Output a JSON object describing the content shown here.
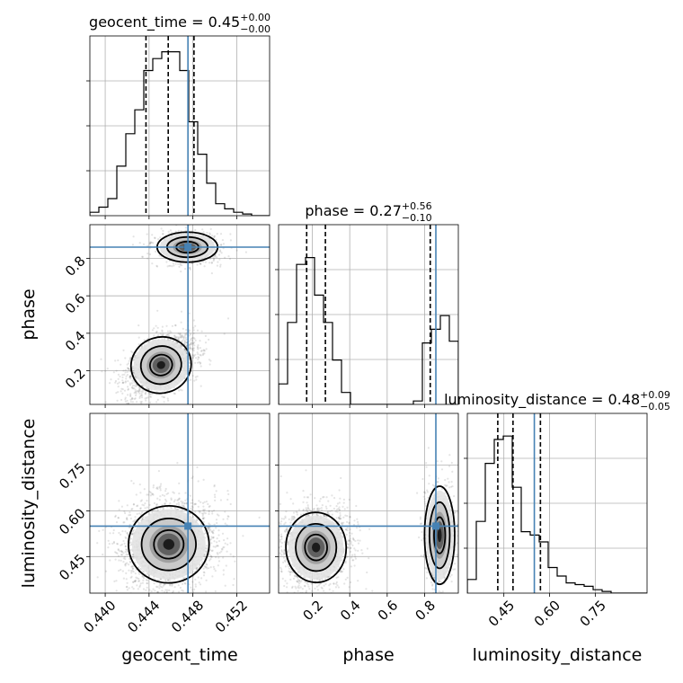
{
  "chart_data": {
    "type": "corner",
    "parameters": [
      {
        "name": "geocent_time",
        "axis_label": "geocent_time",
        "title_main": "geocent_time = 0.45",
        "title_plus": "+0.00",
        "title_minus": "−0.00",
        "range": [
          0.4386,
          0.455
        ],
        "ticks": [
          0.44,
          0.444,
          0.448,
          0.452
        ],
        "tick_labels": [
          "0.440",
          "0.444",
          "0.448",
          "0.452"
        ],
        "injection": 0.44755,
        "quantiles": [
          0.44372,
          0.44575,
          0.4481
        ],
        "hist_edges_start": 0.4386,
        "hist_bin_width": 0.00082,
        "hist_heights": [
          0.02,
          0.05,
          0.1,
          0.29,
          0.48,
          0.62,
          0.85,
          0.92,
          0.96,
          0.96,
          0.85,
          0.55,
          0.36,
          0.19,
          0.07,
          0.04,
          0.02,
          0.01,
          0.0,
          0.0
        ]
      },
      {
        "name": "phase",
        "axis_label": "phase",
        "title_main": "phase = 0.27",
        "title_plus": "+0.56",
        "title_minus": "−0.10",
        "range": [
          0.02,
          0.98
        ],
        "ticks": [
          0.2,
          0.4,
          0.6,
          0.8
        ],
        "tick_labels": [
          "0.2",
          "0.4",
          "0.6",
          "0.8"
        ],
        "injection": 0.86,
        "quantiles": [
          0.17,
          0.27,
          0.83
        ],
        "hist_edges_start": 0.02,
        "hist_bin_width": 0.048,
        "hist_heights": [
          0.12,
          0.48,
          0.82,
          0.86,
          0.64,
          0.48,
          0.26,
          0.07,
          0.0,
          0.0,
          0.0,
          0.0,
          0.0,
          0.0,
          0.0,
          0.02,
          0.36,
          0.44,
          0.52,
          0.37
        ]
      },
      {
        "name": "luminosity_distance",
        "axis_label": "luminosity_distance",
        "title_main": "luminosity_distance = 0.48",
        "title_plus": "+0.09",
        "title_minus": "−0.05",
        "range": [
          0.33,
          0.92
        ],
        "ticks": [
          0.45,
          0.6,
          0.75
        ],
        "tick_labels": [
          "0.45",
          "0.60",
          "0.75"
        ],
        "injection": 0.55,
        "quantiles": [
          0.43,
          0.48,
          0.57
        ],
        "hist_edges_start": 0.33,
        "hist_bin_width": 0.0295,
        "hist_heights": [
          0.08,
          0.42,
          0.76,
          0.9,
          0.92,
          0.62,
          0.36,
          0.34,
          0.3,
          0.15,
          0.1,
          0.06,
          0.05,
          0.04,
          0.02,
          0.01,
          0.0,
          0.0,
          0.0,
          0.0
        ]
      }
    ],
    "marker_color": "#4682b4",
    "pairs": [
      {
        "x": 0,
        "y": 1,
        "blobs": [
          {
            "cx": 0.4451,
            "cy": 0.23,
            "sx": 0.0012,
            "sy": 0.065,
            "w": 0.75,
            "rho": 0.45
          },
          {
            "cx": 0.4475,
            "cy": 0.86,
            "sx": 0.0012,
            "sy": 0.035,
            "w": 0.25,
            "rho": 0.0
          }
        ]
      },
      {
        "x": 0,
        "y": 2,
        "blobs": [
          {
            "cx": 0.4458,
            "cy": 0.49,
            "sx": 0.0016,
            "sy": 0.055,
            "w": 1.0,
            "rho": 0.1
          }
        ]
      },
      {
        "x": 1,
        "y": 2,
        "blobs": [
          {
            "cx": 0.22,
            "cy": 0.48,
            "sx": 0.07,
            "sy": 0.05,
            "w": 0.7,
            "rho": 0.05
          },
          {
            "cx": 0.88,
            "cy": 0.52,
            "sx": 0.035,
            "sy": 0.07,
            "w": 0.3,
            "rho": 0.0
          }
        ]
      }
    ]
  }
}
